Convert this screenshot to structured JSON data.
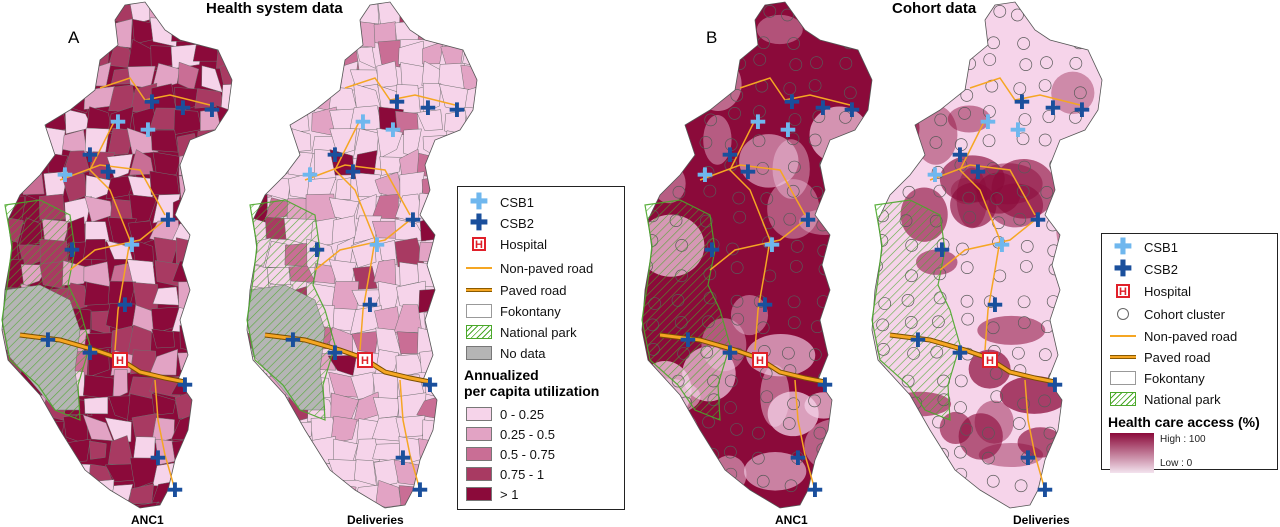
{
  "titles": {
    "health_system": "Health system data",
    "cohort": "Cohort data"
  },
  "panel_letters": {
    "a": "A",
    "b": "B"
  },
  "map_captions": {
    "a_left": "ANC1",
    "a_right": "Deliveries",
    "b_left": "ANC1",
    "b_right": "Deliveries"
  },
  "legend_a": {
    "items": {
      "csb1": "CSB1",
      "csb2": "CSB2",
      "hospital": "Hospital",
      "hospital_glyph": "H",
      "non_paved_road": "Non-paved road",
      "paved_road": "Paved road",
      "fokontany": "Fokontany",
      "national_park": "National park",
      "no_data": "No data"
    },
    "heading_line1": "Annualized",
    "heading_line2": "per capita utilization",
    "classes": [
      {
        "label": "0 - 0.25",
        "color": "#f6d4ea"
      },
      {
        "label": "0.25 - 0.5",
        "color": "#e2a3c4"
      },
      {
        "label": "0.5 - 0.75",
        "color": "#c96e95"
      },
      {
        "label": "0.75 - 1",
        "color": "#a83a62"
      },
      {
        "label": "> 1",
        "color": "#8b0a3a"
      }
    ]
  },
  "legend_b": {
    "items": {
      "csb1": "CSB1",
      "csb2": "CSB2",
      "hospital": "Hospital",
      "hospital_glyph": "H",
      "cohort_cluster": "Cohort cluster",
      "non_paved_road": "Non-paved road",
      "paved_road": "Paved road",
      "fokontany": "Fokontany",
      "national_park": "National park"
    },
    "heading": "Health care access (%)",
    "high_label": "High : 100",
    "low_label": "Low : 0"
  },
  "colors": {
    "csb1": "#6fb7ee",
    "csb2": "#1a4f9c",
    "hospital": "#e0202a",
    "road": "#f5a623",
    "park": "#4aa82a",
    "no_data": "#b5b5b5",
    "dark": "#8b0a3a",
    "light": "#f6d4ea"
  },
  "icons": {
    "csb1": "plus-cross-light-blue",
    "csb2": "plus-cross-dark-blue",
    "hospital": "hospital-h-box",
    "cohort_cluster": "hollow-circle"
  }
}
